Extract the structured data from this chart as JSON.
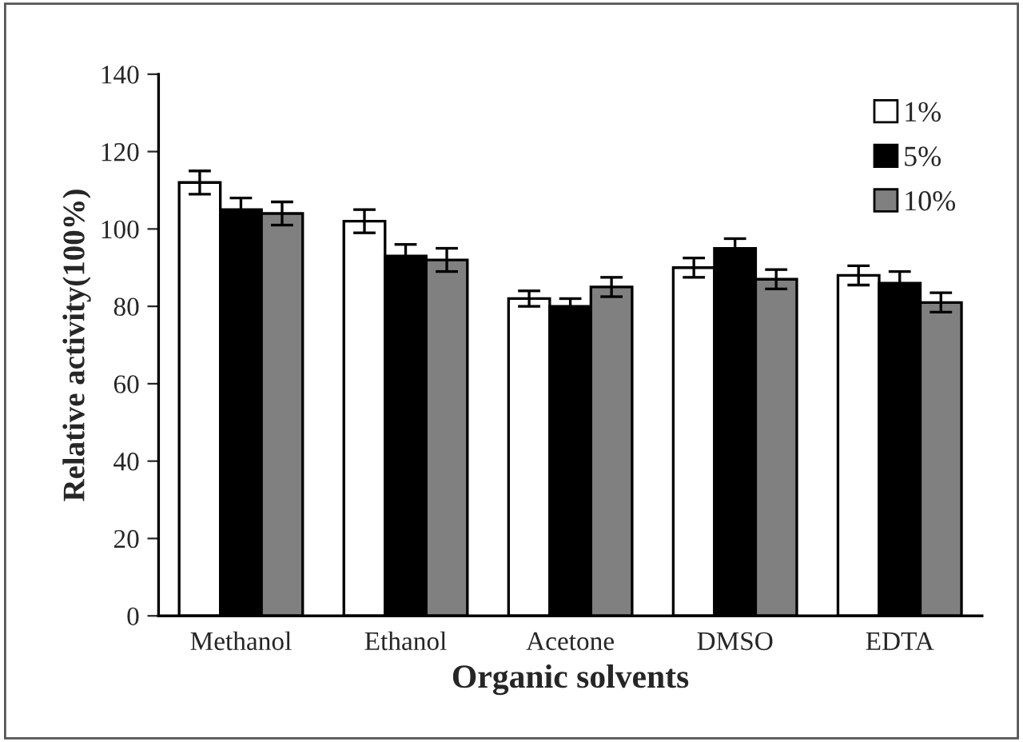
{
  "chart_data": {
    "type": "bar",
    "xlabel": "Organic solvents",
    "ylabel": "Relative activity(100%)",
    "categories": [
      "Methanol",
      "Ethanol",
      "Acetone",
      "DMSO",
      "EDTA"
    ],
    "series": [
      {
        "name": "1%",
        "color": "#ffffff",
        "values": [
          112,
          102,
          82,
          90,
          88
        ],
        "errors": [
          3,
          3,
          2,
          2.5,
          2.5
        ]
      },
      {
        "name": "5%",
        "color": "#000000",
        "values": [
          105,
          93,
          80,
          95,
          86
        ],
        "errors": [
          3,
          3,
          2,
          2.5,
          3
        ]
      },
      {
        "name": "10%",
        "color": "#808080",
        "values": [
          104,
          92,
          85,
          87,
          81
        ],
        "errors": [
          3,
          3,
          2.5,
          2.5,
          2.5
        ]
      }
    ],
    "ylim": [
      0,
      140
    ],
    "yticks": [
      0,
      20,
      40,
      60,
      80,
      100,
      120,
      140
    ],
    "grid": false,
    "legend": "top right"
  }
}
